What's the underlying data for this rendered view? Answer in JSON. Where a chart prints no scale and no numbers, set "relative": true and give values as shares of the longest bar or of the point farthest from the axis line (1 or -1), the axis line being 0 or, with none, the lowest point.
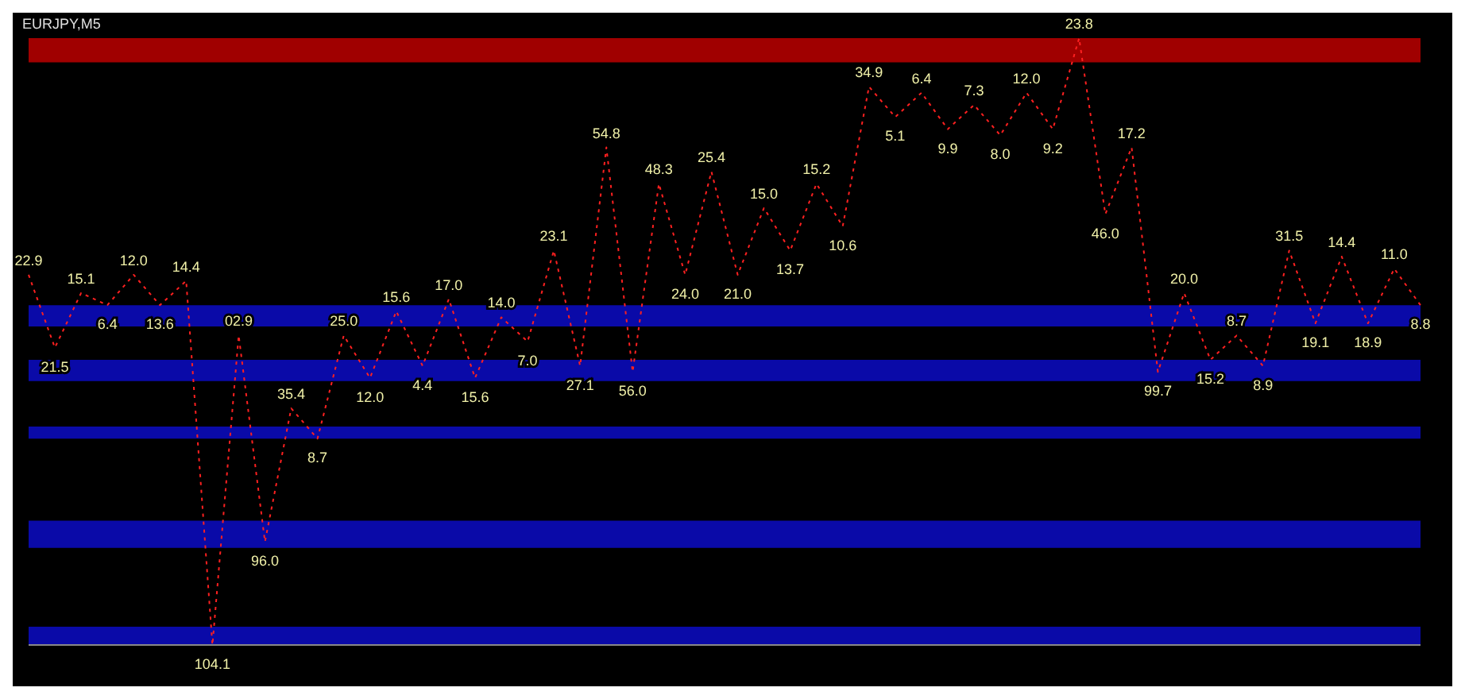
{
  "chart_data": {
    "type": "line",
    "title": "EURJPY,M5",
    "relative": true,
    "line_style": "dotted",
    "marker": "none",
    "categories": [
      null,
      null,
      null,
      null,
      null,
      null,
      null,
      null,
      null,
      null,
      null,
      null,
      null,
      null,
      null,
      null,
      null,
      null,
      null,
      null,
      null,
      null,
      null,
      null,
      null,
      null,
      null,
      null,
      null,
      null,
      null,
      null,
      null,
      null,
      null,
      null,
      null,
      null,
      null,
      null,
      null,
      null,
      null,
      null,
      null,
      null,
      null,
      null,
      null,
      null,
      null,
      null,
      null,
      null
    ],
    "series": [
      {
        "color": "#ff2020",
        "values": [
          0.61,
          0.49,
          0.58,
          0.56,
          0.61,
          0.56,
          0.6,
          0,
          0.51,
          0.17,
          0.39,
          0.34,
          0.51,
          0.44,
          0.55,
          0.46,
          0.57,
          0.44,
          0.54,
          0.5,
          0.65,
          0.46,
          0.82,
          0.45,
          0.76,
          0.61,
          0.78,
          0.61,
          0.72,
          0.65,
          0.76,
          0.69,
          0.92,
          0.87,
          0.91,
          0.85,
          0.89,
          0.84,
          0.91,
          0.85,
          1,
          0.71,
          0.82,
          0.45,
          0.58,
          0.47,
          0.51,
          0.46,
          0.65,
          0.53,
          0.64,
          0.53,
          0.62,
          0.56
        ]
      }
    ],
    "annotations": [
      "22.9",
      "21.5",
      "15.1",
      "6.4",
      "12.0",
      "13.6",
      "14.4",
      "104.1",
      "02.9",
      "96.0",
      "35.4",
      "8.7",
      "25.0",
      "12.0",
      "15.6",
      "4.4",
      "17.0",
      "15.6",
      "14.0",
      "7.0",
      "23.1",
      "27.1",
      "54.8",
      "56.0",
      "48.3",
      "24.0",
      "25.4",
      "21.0",
      "15.0",
      "13.7",
      "15.2",
      "10.6",
      "34.9",
      "5.1",
      "6.4",
      "9.9",
      "7.3",
      "8.0",
      "12.0",
      "9.2",
      "23.8",
      "46.0",
      "17.2",
      "99.7",
      "20.0",
      "15.2",
      "8.7",
      "8.9",
      "31.5",
      "19.1",
      "14.4",
      "18.9",
      "11.0",
      "8.8"
    ],
    "bands": [
      {
        "axis": "y",
        "from": 0.96,
        "to": 1.0,
        "color": "#a00000"
      },
      {
        "axis": "y",
        "from": 0.525,
        "to": 0.56,
        "color": "#0a0aa8"
      },
      {
        "axis": "y",
        "from": 0.435,
        "to": 0.47,
        "color": "#0a0aa8"
      },
      {
        "axis": "y",
        "from": 0.34,
        "to": 0.36,
        "color": "#0a0aa8"
      },
      {
        "axis": "y",
        "from": 0.16,
        "to": 0.205,
        "color": "#0a0aa8"
      },
      {
        "axis": "y",
        "from": 0,
        "to": 0.03,
        "color": "#0a0aa8"
      }
    ]
  }
}
